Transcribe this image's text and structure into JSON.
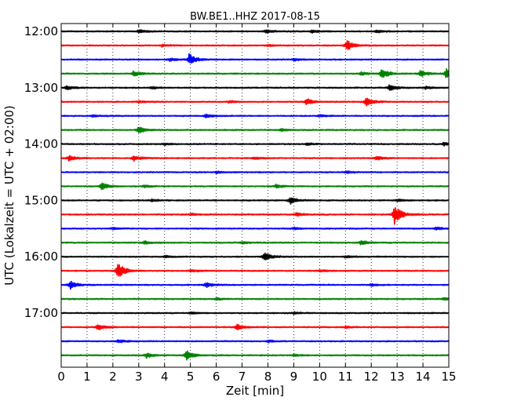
{
  "chart_data": {
    "type": "line",
    "title": "BW.BE1..HHZ 2017-08-15",
    "xlabel": "Zeit  [min]",
    "ylabel": "UTC (Lokalzeit = UTC + 02:00)",
    "xlim": [
      0,
      15
    ],
    "x_ticks": [
      "0",
      "1",
      "2",
      "3",
      "4",
      "5",
      "6",
      "7",
      "8",
      "9",
      "10",
      "11",
      "12",
      "13",
      "14",
      "15"
    ],
    "y_tick_labels": [
      "12:00",
      "13:00",
      "14:00",
      "15:00",
      "16:00",
      "17:00"
    ],
    "grid": "vertical dotted",
    "color_cycle": [
      "#000000",
      "#ff0000",
      "#0000ff",
      "#008000"
    ],
    "series": [
      {
        "start": "12:00",
        "color": "#000000",
        "events": [
          [
            3.0,
            0.3
          ],
          [
            7.9,
            0.3
          ],
          [
            9.7,
            0.25
          ],
          [
            12.2,
            0.25
          ]
        ]
      },
      {
        "start": "12:15",
        "color": "#ff0000",
        "events": [
          [
            11.05,
            1.0
          ],
          [
            3.9,
            0.2
          ],
          [
            8.0,
            0.2
          ]
        ]
      },
      {
        "start": "12:30",
        "color": "#0000ff",
        "events": [
          [
            4.95,
            1.0
          ],
          [
            4.2,
            0.25
          ],
          [
            9.0,
            0.2
          ]
        ]
      },
      {
        "start": "12:45",
        "color": "#008000",
        "events": [
          [
            2.8,
            0.5
          ],
          [
            12.4,
            1.0
          ],
          [
            13.9,
            0.6
          ],
          [
            14.9,
            0.85
          ],
          [
            11.6,
            0.3
          ]
        ]
      },
      {
        "start": "13:00",
        "color": "#000000",
        "events": [
          [
            0.2,
            0.4
          ],
          [
            12.7,
            0.5
          ],
          [
            14.1,
            0.25
          ],
          [
            3.5,
            0.2
          ]
        ]
      },
      {
        "start": "13:15",
        "color": "#ff0000",
        "events": [
          [
            9.5,
            0.6
          ],
          [
            11.8,
            0.8
          ],
          [
            3.0,
            0.2
          ],
          [
            6.5,
            0.2
          ]
        ]
      },
      {
        "start": "13:30",
        "color": "#0000ff",
        "events": [
          [
            5.6,
            0.3
          ],
          [
            1.2,
            0.2
          ],
          [
            10.0,
            0.2
          ]
        ]
      },
      {
        "start": "13:45",
        "color": "#008000",
        "events": [
          [
            3.0,
            0.6
          ],
          [
            8.5,
            0.2
          ]
        ]
      },
      {
        "start": "14:00",
        "color": "#000000",
        "events": [
          [
            14.8,
            0.3
          ],
          [
            4.0,
            0.2
          ],
          [
            9.5,
            0.2
          ]
        ]
      },
      {
        "start": "14:15",
        "color": "#ff0000",
        "events": [
          [
            0.3,
            0.45
          ],
          [
            2.8,
            0.5
          ],
          [
            12.2,
            0.35
          ],
          [
            7.5,
            0.2
          ]
        ]
      },
      {
        "start": "14:30",
        "color": "#0000ff",
        "events": [
          [
            6.0,
            0.2
          ],
          [
            11.0,
            0.2
          ]
        ]
      },
      {
        "start": "14:45",
        "color": "#008000",
        "events": [
          [
            1.55,
            0.7
          ],
          [
            8.3,
            0.3
          ],
          [
            3.2,
            0.2
          ]
        ]
      },
      {
        "start": "15:00",
        "color": "#000000",
        "events": [
          [
            8.85,
            0.65
          ],
          [
            3.5,
            0.2
          ],
          [
            13.0,
            0.2
          ]
        ]
      },
      {
        "start": "15:15",
        "color": "#ff0000",
        "events": [
          [
            12.9,
            1.8
          ],
          [
            9.1,
            0.35
          ],
          [
            5.0,
            0.2
          ]
        ]
      },
      {
        "start": "15:30",
        "color": "#0000ff",
        "events": [
          [
            14.5,
            0.3
          ],
          [
            2.0,
            0.2
          ],
          [
            9.0,
            0.2
          ]
        ]
      },
      {
        "start": "15:45",
        "color": "#008000",
        "events": [
          [
            3.2,
            0.3
          ],
          [
            11.6,
            0.45
          ],
          [
            7.0,
            0.2
          ]
        ]
      },
      {
        "start": "16:00",
        "color": "#000000",
        "events": [
          [
            7.85,
            0.85
          ],
          [
            4.0,
            0.2
          ],
          [
            11.0,
            0.2
          ]
        ]
      },
      {
        "start": "16:15",
        "color": "#ff0000",
        "events": [
          [
            2.2,
            1.5
          ],
          [
            5.0,
            0.25
          ],
          [
            10.0,
            0.2
          ]
        ]
      },
      {
        "start": "16:30",
        "color": "#0000ff",
        "events": [
          [
            0.35,
            0.7
          ],
          [
            5.6,
            0.45
          ],
          [
            12.0,
            0.2
          ]
        ]
      },
      {
        "start": "16:45",
        "color": "#008000",
        "events": [
          [
            14.8,
            0.25
          ],
          [
            6.0,
            0.2
          ]
        ]
      },
      {
        "start": "17:00",
        "color": "#000000",
        "events": [
          [
            5.0,
            0.2
          ],
          [
            9.0,
            0.2
          ]
        ]
      },
      {
        "start": "17:15",
        "color": "#ff0000",
        "events": [
          [
            1.4,
            0.6
          ],
          [
            6.8,
            0.55
          ],
          [
            11.0,
            0.2
          ]
        ]
      },
      {
        "start": "17:30",
        "color": "#0000ff",
        "events": [
          [
            2.2,
            0.3
          ],
          [
            8.0,
            0.2
          ]
        ]
      },
      {
        "start": "17:45",
        "color": "#008000",
        "events": [
          [
            3.3,
            0.45
          ],
          [
            4.85,
            0.9
          ],
          [
            9.0,
            0.2
          ]
        ]
      }
    ]
  }
}
